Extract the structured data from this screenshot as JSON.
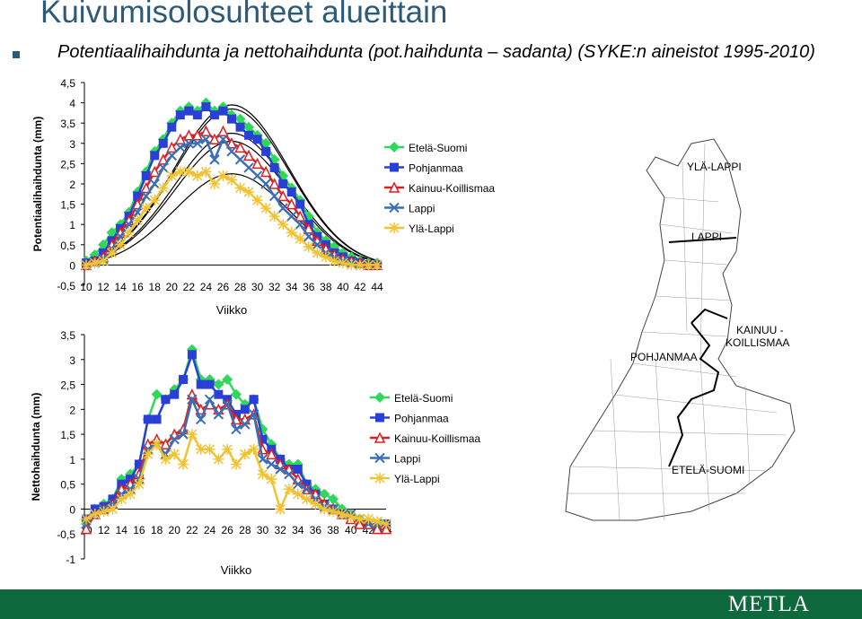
{
  "header": {
    "title": "Kuivumisolosuhteet alueittain",
    "subtitle": "Potentiaalihaihdunta ja nettohaihdunta (pot.haihdunta – sadanta) (SYKE:n aineistot 1995-2010)"
  },
  "map": {
    "labels": [
      "YLÄ-LAPPI",
      "LAPPI",
      "KAINUU -\nKOILLISMAA",
      "POHJANMAA",
      "ETELÄ-SUOMI"
    ]
  },
  "footer": {
    "logo": "METLA"
  },
  "colors": {
    "Etelä-Suomi": "#2fd85a",
    "Pohjanmaa": "#2a3fd6",
    "Kainuu-Koillismaa": "#e01e1e",
    "Lappi": "#3a6fb5",
    "Ylä-Lappi": "#f1c232",
    "footer": "#0e6a3d",
    "title": "#2d5a78"
  },
  "chart_data": [
    {
      "type": "line",
      "ylabel": "Potentiaalihaihdunta (mm)",
      "xlabel": "Viikko",
      "ylim": [
        -0.5,
        4.5
      ],
      "yticks": [
        "4,5",
        "4",
        "3,5",
        "3",
        "2,5",
        "2",
        "1,5",
        "1",
        "0,5",
        "0",
        "-0,5"
      ],
      "xticks": [
        "10",
        "12",
        "14",
        "16",
        "18",
        "20",
        "22",
        "24",
        "26",
        "28",
        "30",
        "32",
        "34",
        "36",
        "38",
        "40",
        "42",
        "44"
      ],
      "x": [
        10,
        11,
        12,
        13,
        14,
        15,
        16,
        17,
        18,
        19,
        20,
        21,
        22,
        23,
        24,
        25,
        26,
        27,
        28,
        29,
        30,
        31,
        32,
        33,
        34,
        35,
        36,
        37,
        38,
        39,
        40,
        41,
        42,
        43,
        44
      ],
      "series": [
        {
          "name": "Etelä-Suomi",
          "values": [
            0.1,
            0.25,
            0.5,
            0.8,
            1.0,
            1.3,
            1.8,
            2.3,
            2.8,
            3.1,
            3.5,
            3.8,
            3.9,
            3.8,
            4.0,
            3.8,
            3.9,
            3.7,
            3.6,
            3.4,
            3.2,
            3.0,
            2.6,
            2.2,
            1.9,
            1.6,
            1.2,
            0.8,
            0.6,
            0.45,
            0.3,
            0.2,
            0.1,
            0.05,
            0.05
          ]
        },
        {
          "name": "Pohjanmaa",
          "values": [
            0.05,
            0.1,
            0.3,
            0.6,
            0.9,
            1.2,
            1.7,
            2.2,
            2.7,
            3.0,
            3.4,
            3.7,
            3.8,
            3.7,
            3.9,
            3.7,
            3.8,
            3.6,
            3.4,
            3.2,
            3.1,
            2.8,
            2.4,
            2.0,
            1.8,
            1.5,
            1.0,
            0.7,
            0.5,
            0.3,
            0.2,
            0.1,
            0.05,
            0.0,
            0.0
          ]
        },
        {
          "name": "Kainuu-Koillismaa",
          "values": [
            0.0,
            0.1,
            0.2,
            0.5,
            0.8,
            1.1,
            1.5,
            1.9,
            2.3,
            2.6,
            2.9,
            3.1,
            3.2,
            3.2,
            3.3,
            3.1,
            3.3,
            3.0,
            2.9,
            2.7,
            2.5,
            2.3,
            2.0,
            1.7,
            1.5,
            1.2,
            0.9,
            0.6,
            0.4,
            0.25,
            0.15,
            0.1,
            0.05,
            0.0,
            0.0
          ]
        },
        {
          "name": "Lappi",
          "values": [
            0.0,
            0.05,
            0.15,
            0.4,
            0.7,
            1.0,
            1.3,
            1.7,
            2.0,
            2.4,
            2.7,
            2.9,
            3.0,
            3.0,
            3.1,
            2.6,
            3.1,
            2.8,
            2.6,
            2.4,
            2.2,
            2.0,
            1.7,
            1.4,
            1.2,
            1.0,
            0.7,
            0.5,
            0.3,
            0.2,
            0.1,
            0.05,
            0.0,
            0.0,
            0.0
          ]
        },
        {
          "name": "Ylä-Lappi",
          "values": [
            0.0,
            0.05,
            0.1,
            0.3,
            0.5,
            0.8,
            1.1,
            1.4,
            1.6,
            1.9,
            2.2,
            2.3,
            2.3,
            2.2,
            2.3,
            2.0,
            2.2,
            2.1,
            1.9,
            1.8,
            1.6,
            1.4,
            1.2,
            1.0,
            0.8,
            0.65,
            0.45,
            0.3,
            0.2,
            0.1,
            0.05,
            0.0,
            0.0,
            0.0,
            0.0
          ]
        }
      ]
    },
    {
      "type": "line",
      "ylabel": "Nettohaihdunta (mm)",
      "xlabel": "Viikko",
      "ylim": [
        -1,
        3.5
      ],
      "yticks": [
        "3,5",
        "3",
        "2,5",
        "2",
        "1,5",
        "1",
        "0,5",
        "0",
        "-0,5",
        "-1"
      ],
      "xticks": [
        "10",
        "12",
        "14",
        "16",
        "18",
        "20",
        "22",
        "24",
        "26",
        "28",
        "30",
        "32",
        "34",
        "36",
        "38",
        "40",
        "42",
        "44"
      ],
      "x": [
        10,
        11,
        12,
        13,
        14,
        15,
        16,
        17,
        18,
        19,
        20,
        21,
        22,
        23,
        24,
        25,
        26,
        27,
        28,
        29,
        30,
        31,
        32,
        33,
        34,
        35,
        36,
        37,
        38,
        39,
        40,
        41,
        42,
        43,
        44
      ],
      "series": [
        {
          "name": "Etelä-Suomi",
          "values": [
            -0.3,
            0.0,
            0.1,
            0.2,
            0.6,
            0.7,
            0.9,
            1.8,
            2.3,
            2.2,
            2.4,
            2.6,
            3.2,
            2.6,
            2.6,
            2.5,
            2.6,
            2.3,
            2.1,
            2.2,
            1.6,
            1.3,
            1.0,
            0.9,
            0.9,
            0.5,
            0.4,
            0.3,
            0.2,
            0.0,
            -0.1,
            -0.2,
            -0.3,
            -0.4,
            -0.3
          ]
        },
        {
          "name": "Pohjanmaa",
          "values": [
            -0.2,
            0.0,
            0.05,
            0.2,
            0.5,
            0.6,
            0.9,
            1.8,
            1.8,
            2.2,
            2.3,
            2.6,
            3.1,
            2.5,
            2.5,
            2.3,
            2.2,
            1.9,
            2.0,
            2.2,
            1.4,
            1.2,
            1.0,
            0.8,
            0.8,
            0.5,
            0.3,
            0.1,
            0.0,
            -0.1,
            -0.2,
            -0.3,
            -0.3,
            -0.4,
            -0.3
          ]
        },
        {
          "name": "Kainuu-Koillismaa",
          "values": [
            -0.4,
            -0.1,
            0.0,
            0.1,
            0.4,
            0.5,
            0.7,
            1.3,
            1.4,
            1.3,
            1.5,
            1.6,
            2.3,
            2.0,
            2.1,
            2.0,
            2.1,
            1.8,
            1.8,
            1.9,
            1.2,
            1.1,
            0.9,
            0.8,
            0.6,
            0.4,
            0.3,
            0.1,
            0.0,
            -0.1,
            -0.2,
            -0.3,
            -0.3,
            -0.4,
            -0.4
          ]
        },
        {
          "name": "Lappi",
          "values": [
            -0.3,
            -0.1,
            0.0,
            0.1,
            0.3,
            0.4,
            0.6,
            1.2,
            1.3,
            1.1,
            1.4,
            1.5,
            2.2,
            1.8,
            2.2,
            1.9,
            2.1,
            1.6,
            1.7,
            1.9,
            1.0,
            0.9,
            0.8,
            0.7,
            0.5,
            0.4,
            0.2,
            0.05,
            0.0,
            -0.1,
            -0.1,
            -0.2,
            -0.3,
            -0.3,
            -0.3
          ]
        },
        {
          "name": "Ylä-Lappi",
          "values": [
            -0.2,
            -0.1,
            -0.05,
            0.0,
            0.2,
            0.3,
            0.5,
            1.1,
            1.3,
            1.0,
            1.1,
            0.9,
            1.5,
            1.2,
            1.2,
            1.0,
            1.2,
            0.9,
            1.1,
            1.2,
            0.7,
            0.6,
            0.0,
            0.4,
            0.3,
            0.2,
            0.1,
            0.0,
            -0.05,
            -0.1,
            -0.15,
            -0.2,
            -0.2,
            -0.25,
            -0.3
          ]
        }
      ]
    }
  ]
}
